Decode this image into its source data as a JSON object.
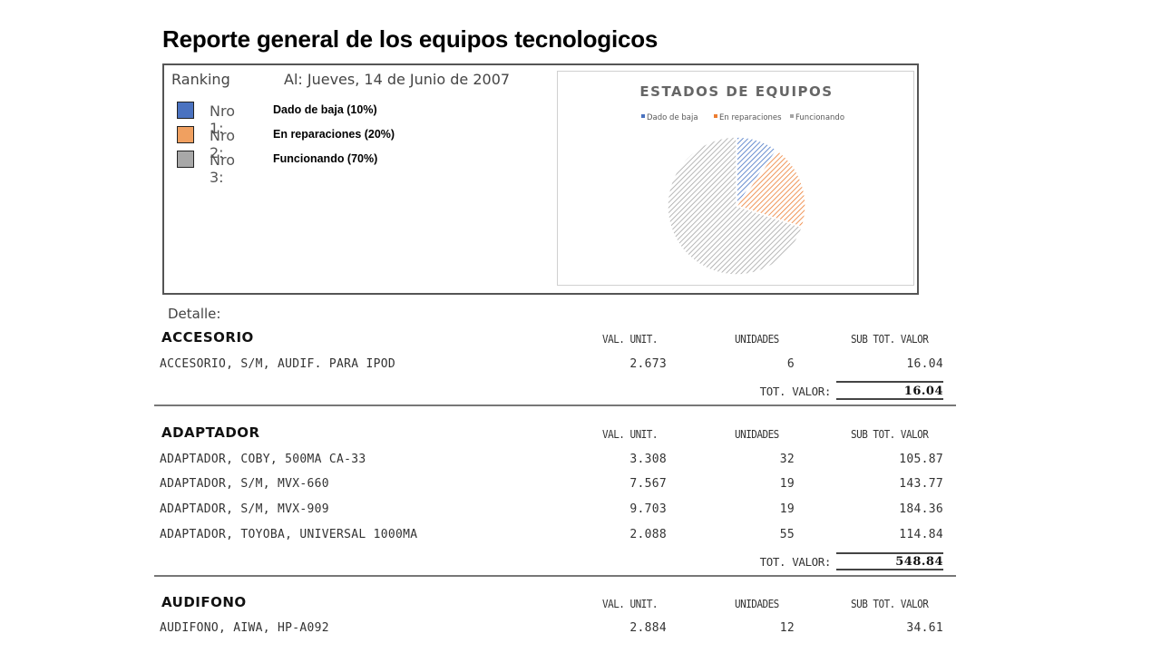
{
  "title": "Reporte general de los equipos tecnologicos",
  "ranking": {
    "label": "Ranking",
    "date": "Al: Jueves, 14 de Junio de 2007",
    "items": [
      {
        "nro": "Nro 1:",
        "text": "Dado de baja (10%)",
        "color": "#4a72c0"
      },
      {
        "nro": "Nro 2:",
        "text": "En reparaciones (20%)",
        "color": "#f0a060"
      },
      {
        "nro": "Nro 3:",
        "text": "Funcionando (70%)",
        "color": "#a8a8a8"
      }
    ]
  },
  "chart_data": {
    "type": "pie",
    "title": "ESTADOS DE EQUIPOS",
    "categories": [
      "Dado de baja",
      "En reparaciones",
      "Funcionando"
    ],
    "values": [
      10,
      20,
      70
    ],
    "colors": [
      "#4a72c0",
      "#ed7d31",
      "#a5a5a5"
    ],
    "legend": "top",
    "fill": "hatched"
  },
  "detail": {
    "label": "Detalle:",
    "headers": {
      "val": "VAL. UNIT.",
      "uni": "UNIDADES",
      "sub": "SUB TOT. VALOR"
    },
    "total_label": "TOT. VALOR:",
    "sections": [
      {
        "name": "ACCESORIO",
        "rows": [
          {
            "desc": "ACCESORIO, S/M, AUDIF. PARA IPOD",
            "val": "2.673",
            "uni": "6",
            "sub": "16.04"
          }
        ],
        "total": "16.04"
      },
      {
        "name": "ADAPTADOR",
        "rows": [
          {
            "desc": "ADAPTADOR, COBY, 500MA CA-33",
            "val": "3.308",
            "uni": "32",
            "sub": "105.87"
          },
          {
            "desc": "ADAPTADOR, S/M, MVX-660",
            "val": "7.567",
            "uni": "19",
            "sub": "143.77"
          },
          {
            "desc": "ADAPTADOR, S/M, MVX-909",
            "val": "9.703",
            "uni": "19",
            "sub": "184.36"
          },
          {
            "desc": "ADAPTADOR, TOYOBA, UNIVERSAL 1000MA",
            "val": "2.088",
            "uni": "55",
            "sub": "114.84"
          }
        ],
        "total": "548.84"
      },
      {
        "name": "AUDIFONO",
        "rows": [
          {
            "desc": "AUDIFONO, AIWA, HP-A092",
            "val": "2.884",
            "uni": "12",
            "sub": "34.61"
          }
        ],
        "total": ""
      }
    ]
  }
}
